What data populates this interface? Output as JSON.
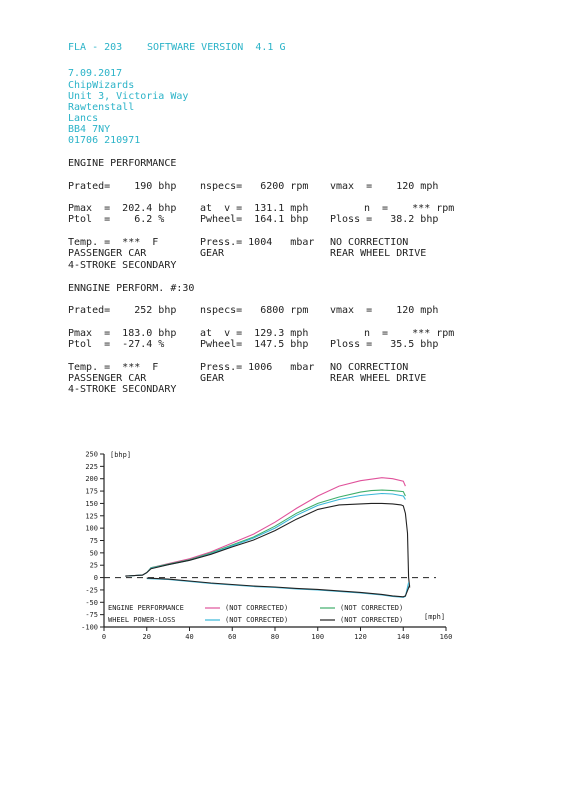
{
  "header": {
    "model": "FLA - 203",
    "software": "SOFTWARE VERSION  4.1 G",
    "date": "7.09.2017",
    "address": [
      "ChipWizards",
      "Unit 3, Victoria Way",
      "Rawtenstall",
      "Lancs",
      "BB4 7NY",
      "01706 210971"
    ]
  },
  "run1": {
    "title": "ENGINE PERFORMANCE",
    "rated": "Prated=    190 bhp",
    "nspecs": "nspecs=   6200 rpm",
    "vmax": "vmax  =    120 mph",
    "pmax": "Pmax  =  202.4 bhp",
    "atv": "at  v =  131.1 mph",
    "n": "n  =    *** rpm",
    "ptol": "Ptol  =    6.2 %",
    "pwheel": "Pwheel=  164.1 bhp",
    "ploss": "Ploss =   38.2 bhp",
    "temp": "Temp. =  ***  F",
    "press": "Press.= 1004   mbar",
    "correction": "NO CORRECTION",
    "vehicle": "PASSENGER CAR",
    "gear": "GEAR",
    "drive": "REAR WHEEL DRIVE",
    "stroke": "4-STROKE SECONDARY"
  },
  "run2": {
    "title": "ENNGINE PERFORM. #:30",
    "rated": "Prated=    252 bhp",
    "nspecs": "nspecs=   6800 rpm",
    "vmax": "vmax  =    120 mph",
    "pmax": "Pmax  =  183.0 bhp",
    "atv": "at  v =  129.3 mph",
    "n": "n  =    *** rpm",
    "ptol": "Ptol  =  -27.4 %",
    "pwheel": "Pwheel=  147.5 bhp",
    "ploss": "Ploss =   35.5 bhp",
    "temp": "Temp. =  ***  F",
    "press": "Press.= 1006   mbar",
    "correction": "NO CORRECTION",
    "vehicle": "PASSENGER CAR",
    "gear": "GEAR",
    "drive": "REAR WHEEL DRIVE",
    "stroke": "4-STROKE SECONDARY"
  },
  "chart_data": {
    "type": "line",
    "ylabel": "[bhp]",
    "xlabel": "[mph]",
    "xlim": [
      0,
      160
    ],
    "ylim": [
      -100,
      250
    ],
    "x_ticks": [
      "0",
      "20",
      "40",
      "60",
      "80",
      "100",
      "120",
      "140",
      "160"
    ],
    "y_ticks": [
      "250",
      "225",
      "200",
      "175",
      "150",
      "125",
      "100",
      "75",
      "50",
      "25",
      "0",
      "-25",
      "-50",
      "-75",
      "-100"
    ],
    "legend": {
      "engine_performance": "ENGINE PERFORMANCE",
      "wheel_power_loss": "WHEEL POWER-LOSS",
      "not_corrected": "(NOT CORRECTED)"
    },
    "colors": {
      "magenta": "#e0529b",
      "green": "#3fae6a",
      "cyan": "#39b6d8",
      "black": "#222222"
    },
    "series": [
      {
        "color": "magenta",
        "x": [
          10,
          18,
          20,
          22,
          30,
          40,
          50,
          60,
          70,
          80,
          90,
          100,
          110,
          120,
          125,
          130,
          135,
          140,
          141
        ],
        "y": [
          3,
          5,
          10,
          20,
          28,
          38,
          52,
          70,
          88,
          112,
          140,
          165,
          185,
          196,
          199,
          202,
          200,
          195,
          185
        ]
      },
      {
        "color": "green",
        "x": [
          10,
          18,
          20,
          22,
          30,
          40,
          50,
          60,
          70,
          80,
          90,
          100,
          110,
          120,
          125,
          130,
          135,
          140,
          141
        ],
        "y": [
          3,
          5,
          10,
          20,
          27,
          36,
          50,
          66,
          82,
          104,
          130,
          150,
          163,
          173,
          176,
          177,
          176,
          174,
          165
        ]
      },
      {
        "color": "cyan",
        "x": [
          10,
          18,
          20,
          22,
          30,
          40,
          50,
          60,
          70,
          80,
          90,
          100,
          110,
          120,
          125,
          130,
          135,
          140,
          141
        ],
        "y": [
          3,
          5,
          10,
          19,
          26,
          35,
          48,
          64,
          80,
          100,
          126,
          146,
          158,
          166,
          168,
          170,
          169,
          165,
          158
        ]
      },
      {
        "color": "black",
        "x": [
          10,
          18,
          20,
          22,
          30,
          40,
          50,
          60,
          70,
          80,
          90,
          100,
          110,
          120,
          125,
          130,
          135,
          139,
          140,
          141,
          142,
          142.5,
          143
        ],
        "y": [
          3,
          5,
          10,
          18,
          26,
          35,
          47,
          62,
          76,
          95,
          118,
          138,
          147,
          149,
          150,
          150,
          149,
          147,
          145,
          130,
          90,
          0,
          -20
        ]
      },
      {
        "color": "cyan",
        "name_key": "loss",
        "x": [
          20,
          30,
          40,
          50,
          60,
          70,
          80,
          90,
          100,
          110,
          120,
          130,
          135,
          140,
          141,
          142.5
        ],
        "y": [
          -2,
          -4,
          -8,
          -12,
          -15,
          -18,
          -20,
          -23,
          -25,
          -28,
          -31,
          -35,
          -38,
          -40,
          -38,
          -10
        ]
      },
      {
        "color": "black",
        "name_key": "loss",
        "x": [
          20,
          30,
          40,
          50,
          60,
          70,
          80,
          90,
          100,
          110,
          120,
          130,
          135,
          140,
          141,
          143
        ],
        "y": [
          -1,
          -3,
          -7,
          -11,
          -14,
          -17,
          -19,
          -22,
          -24,
          -27,
          -30,
          -34,
          -37,
          -39,
          -37,
          -15
        ]
      }
    ]
  }
}
